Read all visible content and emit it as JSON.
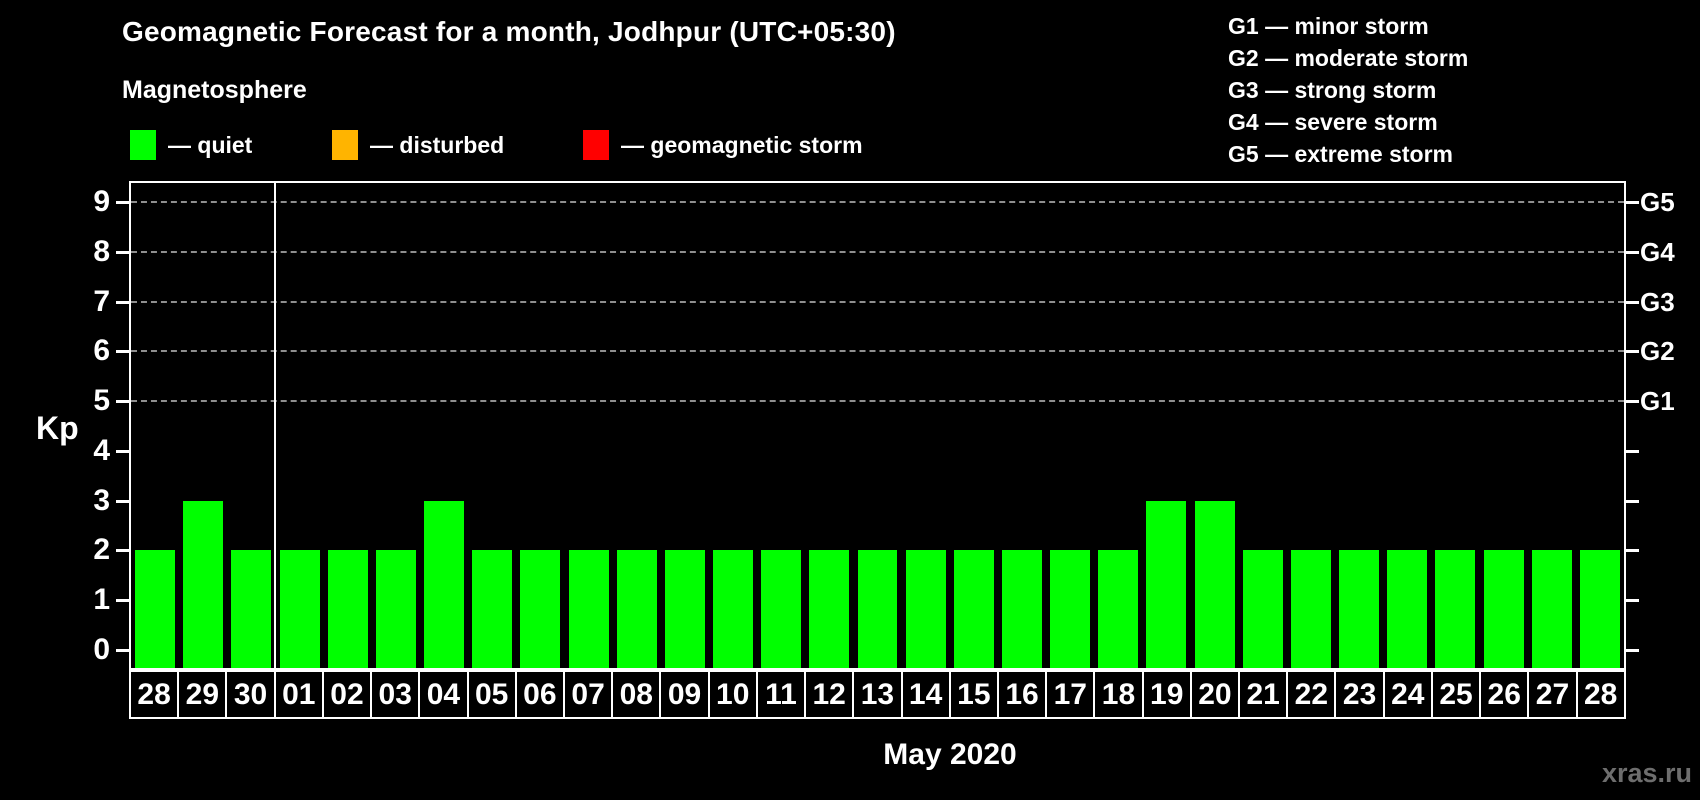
{
  "title": "Geomagnetic Forecast for a month, Jodhpur (UTC+05:30)",
  "subtitle": "Magnetosphere",
  "legend": {
    "items": [
      {
        "name": "quiet",
        "label": "— quiet",
        "color": "#00ff00"
      },
      {
        "name": "disturbed",
        "label": "— disturbed",
        "color": "#ffb400"
      },
      {
        "name": "geomagnetic-storm",
        "label": "— geomagnetic storm",
        "color": "#ff0000"
      }
    ]
  },
  "g_legend": {
    "lines": [
      "G1 — minor storm",
      "G2 — moderate storm",
      "G3 — strong storm",
      "G4 — severe storm",
      "G5 — extreme storm"
    ]
  },
  "watermark": "xras.ru",
  "chart_data": {
    "type": "bar",
    "title": "Geomagnetic Forecast for a month, Jodhpur (UTC+05:30)",
    "ylabel": "Kp",
    "xlabel": "May 2020",
    "month_label": "May 2020",
    "ylim": [
      0,
      9
    ],
    "yticks": [
      0,
      1,
      2,
      3,
      4,
      5,
      6,
      7,
      8,
      9
    ],
    "grid_levels": [
      5,
      6,
      7,
      8,
      9
    ],
    "grid": true,
    "legend_position": "top",
    "right_axis_labels": [
      {
        "kp": 5,
        "label": "G1"
      },
      {
        "kp": 6,
        "label": "G2"
      },
      {
        "kp": 7,
        "label": "G3"
      },
      {
        "kp": 8,
        "label": "G4"
      },
      {
        "kp": 9,
        "label": "G5"
      }
    ],
    "categories": [
      "28",
      "29",
      "30",
      "01",
      "02",
      "03",
      "04",
      "05",
      "06",
      "07",
      "08",
      "09",
      "10",
      "11",
      "12",
      "13",
      "14",
      "15",
      "16",
      "17",
      "18",
      "19",
      "20",
      "21",
      "22",
      "23",
      "24",
      "25",
      "26",
      "27",
      "28"
    ],
    "values": [
      2,
      3,
      2,
      2,
      2,
      2,
      3,
      2,
      2,
      2,
      2,
      2,
      2,
      2,
      2,
      2,
      2,
      2,
      2,
      2,
      2,
      3,
      3,
      2,
      2,
      2,
      2,
      2,
      2,
      2,
      2
    ],
    "month_separator_after_index": 2,
    "bar_color": "#00ff00"
  }
}
